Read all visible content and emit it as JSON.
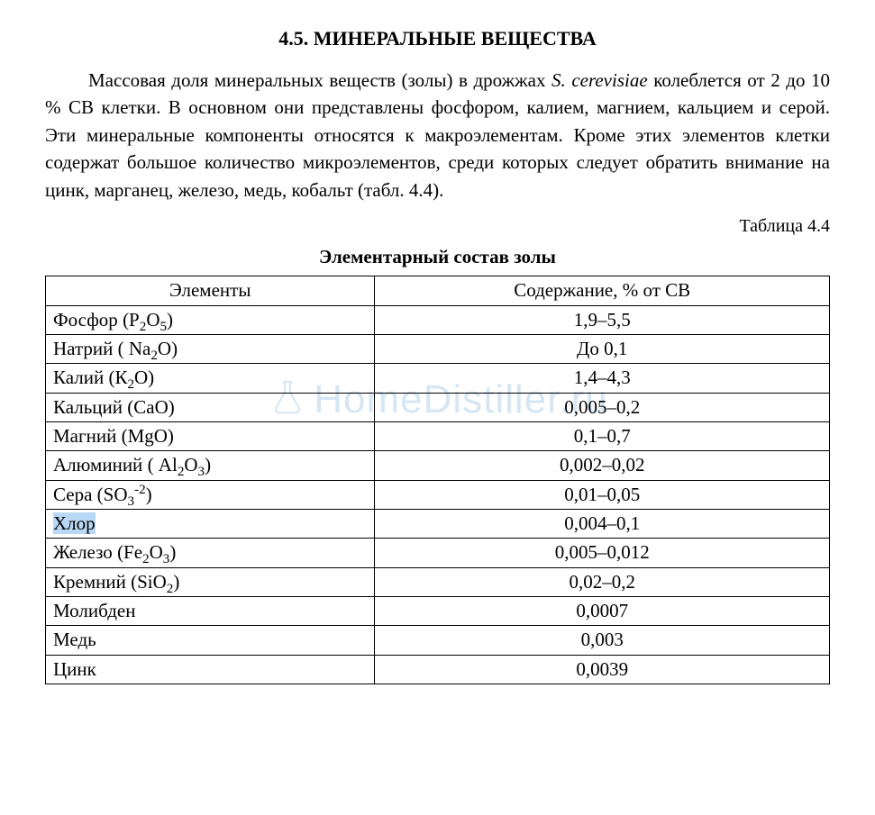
{
  "heading": "4.5. МИНЕРАЛЬНЫЕ ВЕЩЕСТВА",
  "paragraph": {
    "pre": "Массовая доля минеральных веществ  (золы) в дрожжах ",
    "species": "S. cerevisiae",
    "post": " колеблется от 2 до 10 % СВ клетки. В основном они представлены фосфором, калием, магнием, кальцием и серой. Эти минеральные компоненты относятся к макроэлементам. Кроме этих элементов клетки содержат большое количество микроэлементов, среди которых следует обратить внимание на  цинк, марганец, железо, медь, кобальт  (табл. 4.4)."
  },
  "table_number_label": "Таблица 4.4",
  "table_title": "Элементарный состав золы",
  "table": {
    "columns": [
      "Элементы",
      "Содержание, % от СВ"
    ],
    "rows": [
      {
        "name": "Фосфор",
        "formula_html": "(P<sub>2</sub>O<sub>5</sub>)",
        "value": "1,9–5,5",
        "highlighted": false
      },
      {
        "name": "Натрий",
        "formula_html": "( Na<sub>2</sub>O)",
        "value": "До 0,1",
        "highlighted": false
      },
      {
        "name": "Калий",
        "formula_html": "(К<sub>2</sub>О)",
        "value": "1,4–4,3",
        "highlighted": false
      },
      {
        "name": "Кальций",
        "formula_html": "(СаО)",
        "value": "0,005–0,2",
        "highlighted": false
      },
      {
        "name": "Магний",
        "formula_html": "(MgO)",
        "value": "0,1–0,7",
        "highlighted": false
      },
      {
        "name": "Алюминий",
        "formula_html": "( Al<sub>2</sub>O<sub>3</sub>)",
        "value": "0,002–0,02",
        "highlighted": false
      },
      {
        "name": "Сера",
        "formula_html": "(SO<sub>3</sub><sup>-2</sup>)",
        "value": "0,01–0,05",
        "highlighted": false
      },
      {
        "name": "Хлор",
        "formula_html": "",
        "value": "0,004–0,1",
        "highlighted": true
      },
      {
        "name": "Железо",
        "formula_html": " (Fe<sub>2</sub>O<sub>3</sub>)",
        "value": "0,005–0,012",
        "highlighted": false
      },
      {
        "name": "Кремний",
        "formula_html": "(SiO<sub>2</sub>)",
        "value": "0,02–0,2",
        "highlighted": false
      },
      {
        "name": "Молибден",
        "formula_html": "",
        "value": "0,0007",
        "highlighted": false
      },
      {
        "name": "Медь",
        "formula_html": "",
        "value": "0,003",
        "highlighted": false
      },
      {
        "name": "Цинк",
        "formula_html": "",
        "value": "0,0039",
        "highlighted": false
      }
    ]
  },
  "watermark": {
    "text": "HomeDistiller.ru",
    "color": "#d6e7f3",
    "icon_color": "#d6e7f3"
  },
  "styling": {
    "font_family": "Times New Roman",
    "body_font_size_pt": 16,
    "heading_font_size_pt": 16,
    "background_color": "#ffffff",
    "text_color": "#000000",
    "border_color": "#000000",
    "highlight_color": "#b9d8f5"
  }
}
